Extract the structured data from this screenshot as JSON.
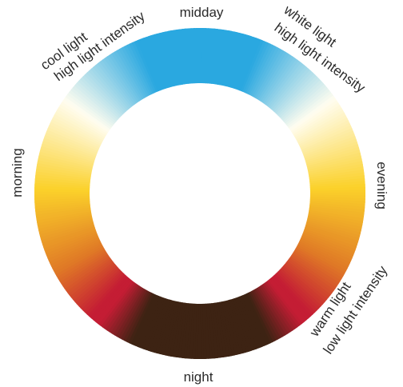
{
  "labels": {
    "midday": "midday",
    "night": "night",
    "morning": "morning",
    "evening": "evening",
    "cool_line1": "cool light",
    "cool_line2": "high light intensity",
    "white_line1": "white light",
    "white_line2": "high light intensity",
    "warm_line1": "warm light",
    "warm_line2": "low light intensity"
  },
  "colors": {
    "blue": "#2aa8e0",
    "white": "#fffdf0",
    "yellow": "#fbd12a",
    "orange": "#e07a26",
    "red": "#c41d34",
    "brown": "#3d2313"
  }
}
